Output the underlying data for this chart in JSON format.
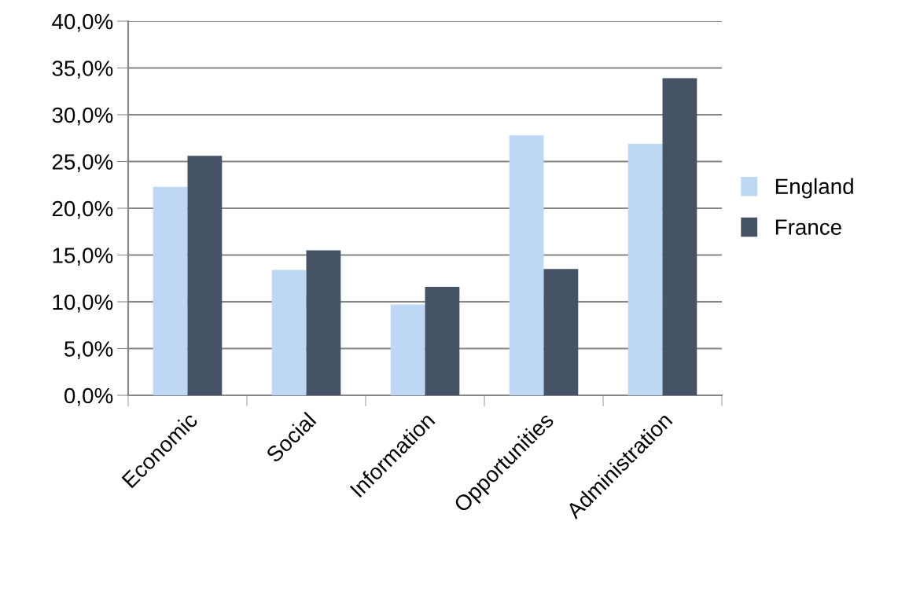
{
  "chart_data": {
    "type": "bar",
    "categories": [
      "Economic",
      "Social",
      "Information",
      "Opportunities",
      "Administration"
    ],
    "series": [
      {
        "name": "England",
        "color": "#bdd7f5",
        "values": [
          22.3,
          13.4,
          9.7,
          27.8,
          26.9
        ]
      },
      {
        "name": "France",
        "color": "#465366",
        "values": [
          25.6,
          15.5,
          11.6,
          13.5,
          33.9
        ]
      }
    ],
    "ylim": [
      0,
      40
    ],
    "yticks": [
      {
        "value": 0,
        "label": "0,0%"
      },
      {
        "value": 5,
        "label": "5,0%"
      },
      {
        "value": 10,
        "label": "10,0%"
      },
      {
        "value": 15,
        "label": "15,0%"
      },
      {
        "value": 20,
        "label": "20,0%"
      },
      {
        "value": 25,
        "label": "25,0%"
      },
      {
        "value": 30,
        "label": "30,0%"
      },
      {
        "value": 35,
        "label": "35,0%"
      },
      {
        "value": 40,
        "label": "40,0%"
      }
    ],
    "grid": "y",
    "legend": "right"
  }
}
